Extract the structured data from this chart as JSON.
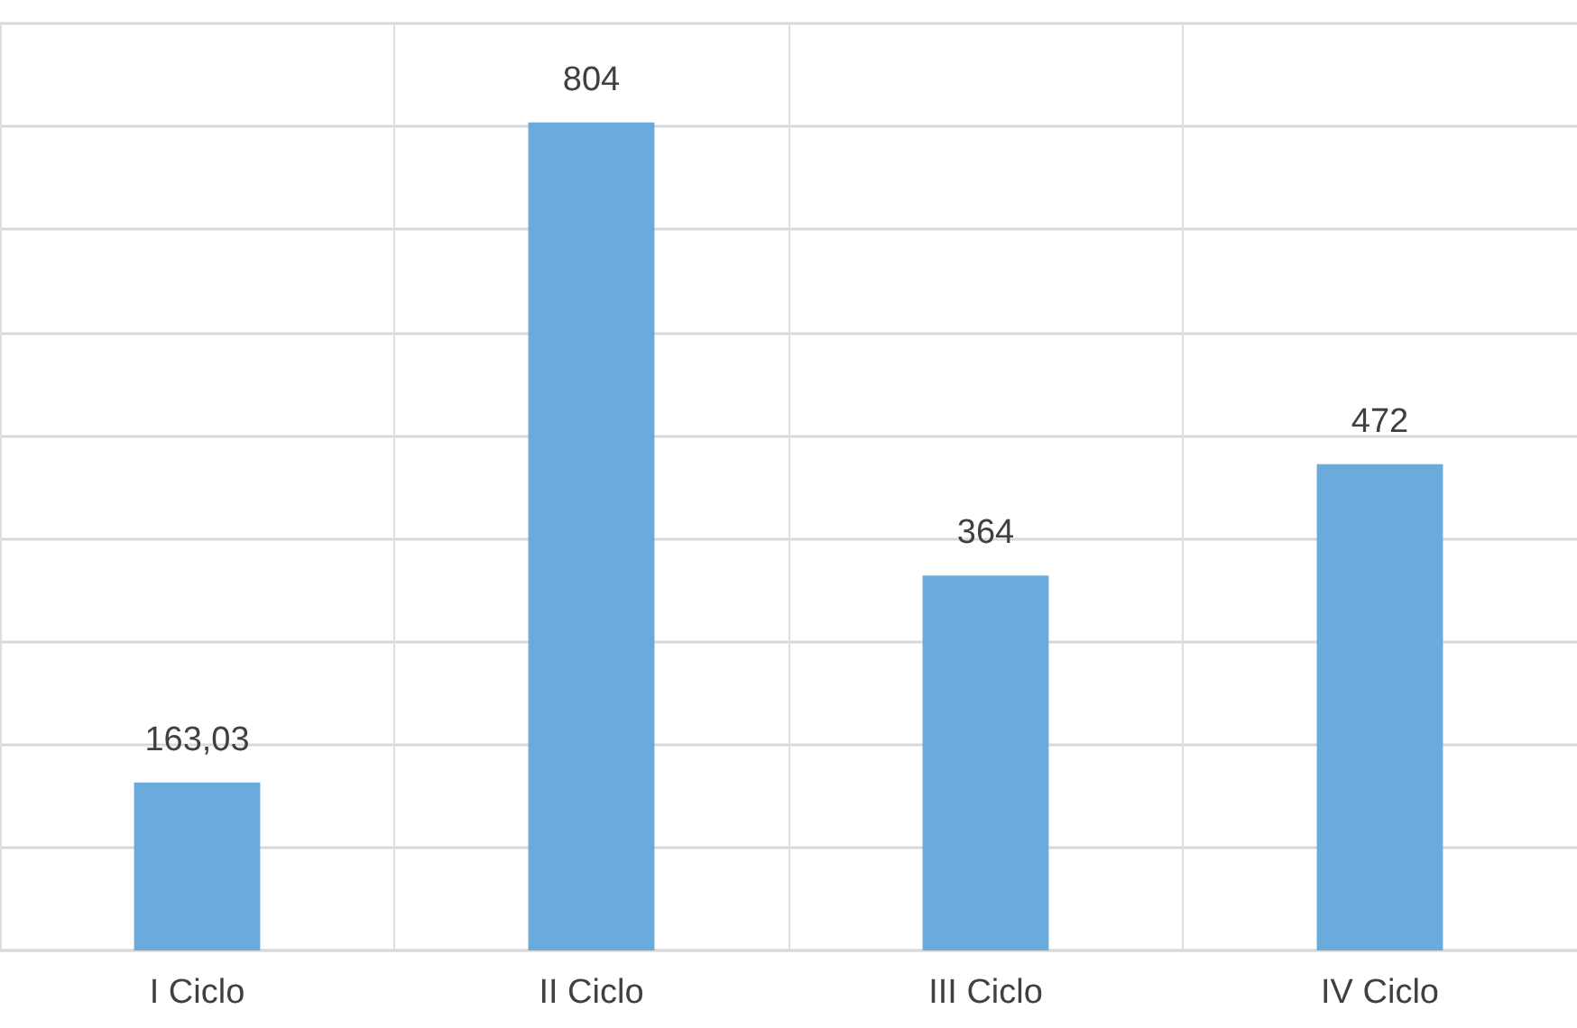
{
  "chart_data": {
    "type": "bar",
    "categories": [
      "I Ciclo",
      "II Ciclo",
      "III Ciclo",
      "IV Ciclo"
    ],
    "values": [
      163.03,
      804,
      364,
      472
    ],
    "value_labels": [
      "163,03",
      "804",
      "364",
      "472"
    ],
    "color": "#6aabdb",
    "ylim": [
      0,
      900
    ],
    "yticks": [
      {
        "value": 0,
        "label": null
      },
      {
        "value": 100,
        "label": null
      },
      {
        "value": 200,
        "label": null
      },
      {
        "value": 300,
        "label": null
      },
      {
        "value": 400,
        "label": null
      },
      {
        "value": 500,
        "label": null
      },
      {
        "value": 600,
        "label": null
      },
      {
        "value": 700,
        "label": null
      },
      {
        "value": 800,
        "label": null
      },
      {
        "value": 900,
        "label": null
      }
    ],
    "tick_labels": "x",
    "grid": true
  }
}
